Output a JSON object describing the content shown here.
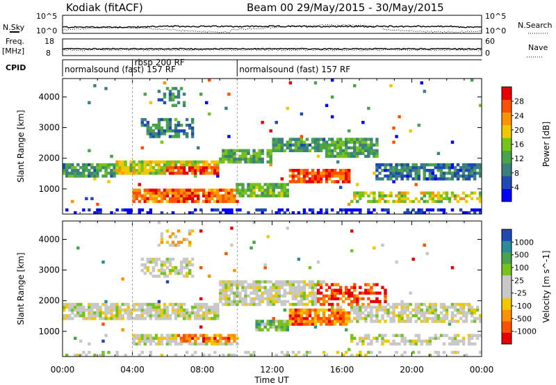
{
  "header": {
    "station": "Kodiak (fitACF)",
    "beam_date": "Beam 00  29/May/2015 - 30/May/2015"
  },
  "top_panels": {
    "nsky_label": "N.Sky",
    "nsky_ticks": [
      "10^5",
      "10^0"
    ],
    "nsearch_label": "N.Search",
    "freq_label_1": "Freq.",
    "freq_label_2": "[MHz]",
    "freq_ticks": [
      "18",
      "8"
    ],
    "nave_label": "Nave",
    "nave_ticks": [
      "60",
      "0"
    ],
    "cpid_label": "CPID",
    "cpid_segments": [
      {
        "label": "normalsound (fast) 157 RF",
        "start": 0,
        "end": 4
      },
      {
        "label": "rbsp 200 RF",
        "start": 4,
        "end": 10
      },
      {
        "label": "normalsound (fast) 157 RF",
        "start": 10,
        "end": 24
      }
    ]
  },
  "x_axis": {
    "label": "Time UT",
    "ticks": [
      "00:00",
      "04:00",
      "08:00",
      "12:00",
      "16:00",
      "20:00",
      "00:00"
    ]
  },
  "chart_data": [
    {
      "type": "heatmap",
      "name": "power",
      "xlabel": "Time UT",
      "ylabel": "Slant Range [km]",
      "xlim": [
        0,
        24
      ],
      "ylim": [
        180,
        4600
      ],
      "yticks": [
        "1000",
        "2000",
        "3000",
        "4000"
      ],
      "colorbar": {
        "label": "Power [dB]",
        "ticks": [
          "28",
          "24",
          "20",
          "16",
          "12",
          "8",
          "4"
        ],
        "colors": [
          "#0000ff",
          "#1f49b3",
          "#3b7f7f",
          "#49a349",
          "#77c21c",
          "#f0c800",
          "#ff9200",
          "#ff5000",
          "#e80000"
        ]
      },
      "bands": [
        {
          "t0": 0,
          "t1": 24,
          "r0": 180,
          "r1": 350,
          "density": 0.35,
          "level": 0.05
        },
        {
          "t0": 0,
          "t1": 3,
          "r0": 1350,
          "r1": 1800,
          "density": 0.85,
          "level": 0.35
        },
        {
          "t0": 3,
          "t1": 9,
          "r0": 1500,
          "r1": 1950,
          "density": 0.9,
          "level": 0.55
        },
        {
          "t0": 6,
          "t1": 9,
          "r0": 1450,
          "r1": 1750,
          "density": 0.9,
          "level": 0.85
        },
        {
          "t0": 9,
          "t1": 12,
          "r0": 1800,
          "r1": 2300,
          "density": 0.85,
          "level": 0.4
        },
        {
          "t0": 12,
          "t1": 15,
          "r0": 2250,
          "r1": 2700,
          "density": 0.85,
          "level": 0.35
        },
        {
          "t0": 15,
          "t1": 18,
          "r0": 2000,
          "r1": 2700,
          "density": 0.8,
          "level": 0.4
        },
        {
          "t0": 18,
          "t1": 24,
          "r0": 1300,
          "r1": 1800,
          "density": 0.75,
          "level": 0.25
        },
        {
          "t0": 4,
          "t1": 10,
          "r0": 550,
          "r1": 1050,
          "density": 0.85,
          "level": 0.8
        },
        {
          "t0": 10,
          "t1": 13,
          "r0": 750,
          "r1": 1150,
          "density": 0.8,
          "level": 0.45
        },
        {
          "t0": 13,
          "t1": 16.5,
          "r0": 1200,
          "r1": 1650,
          "density": 0.85,
          "level": 0.85
        },
        {
          "t0": 16.5,
          "t1": 24,
          "r0": 550,
          "r1": 900,
          "density": 0.6,
          "level": 0.55
        },
        {
          "t0": 4.5,
          "t1": 7.5,
          "r0": 2700,
          "r1": 3300,
          "density": 0.6,
          "level": 0.3
        },
        {
          "t0": 5.5,
          "t1": 7,
          "r0": 3700,
          "r1": 4300,
          "density": 0.35,
          "level": 0.3
        }
      ]
    },
    {
      "type": "heatmap",
      "name": "velocity",
      "xlabel": "Time UT",
      "ylabel": "Slant Range [km]",
      "xlim": [
        0,
        24
      ],
      "ylim": [
        180,
        4600
      ],
      "yticks": [
        "1000",
        "2000",
        "3000",
        "4000"
      ],
      "colorbar": {
        "label": "Velocity [m s^-1]",
        "ticks": [
          "1000",
          "500",
          "100",
          "25",
          "-25",
          "-100",
          "-500",
          "-1000"
        ],
        "colors": [
          "#e80000",
          "#ff5000",
          "#ff9200",
          "#f0c800",
          "#c8c8c8",
          "#c8c8c8",
          "#77c21c",
          "#49a349",
          "#2a8c9a",
          "#1f49b3"
        ]
      },
      "bands": [
        {
          "t0": 0,
          "t1": 24,
          "r0": 180,
          "r1": 350,
          "density": 0.25,
          "level": 0.5
        },
        {
          "t0": 0,
          "t1": 9,
          "r0": 1350,
          "r1": 1950,
          "density": 0.8,
          "level": 0.5
        },
        {
          "t0": 9,
          "t1": 15,
          "r0": 1800,
          "r1": 2700,
          "density": 0.75,
          "level": 0.5
        },
        {
          "t0": 15,
          "t1": 24,
          "r0": 1300,
          "r1": 1900,
          "density": 0.65,
          "level": 0.5
        },
        {
          "t0": 4,
          "t1": 10,
          "r0": 550,
          "r1": 950,
          "density": 0.8,
          "level": 0.5
        },
        {
          "t0": 6.5,
          "t1": 10,
          "r0": 650,
          "r1": 950,
          "density": 0.8,
          "level": 0.2
        },
        {
          "t0": 11,
          "t1": 13,
          "r0": 1050,
          "r1": 1400,
          "density": 0.8,
          "level": 0.7
        },
        {
          "t0": 13,
          "t1": 16.5,
          "r0": 1200,
          "r1": 1700,
          "density": 0.85,
          "level": 0.2
        },
        {
          "t0": 14.5,
          "t1": 18.5,
          "r0": 1800,
          "r1": 2600,
          "density": 0.55,
          "level": 0.15
        },
        {
          "t0": 16.5,
          "t1": 24,
          "r0": 550,
          "r1": 900,
          "density": 0.55,
          "level": 0.5
        },
        {
          "t0": 4.5,
          "t1": 7.5,
          "r0": 2800,
          "r1": 3400,
          "density": 0.5,
          "level": 0.5
        },
        {
          "t0": 5.5,
          "t1": 7.5,
          "r0": 3800,
          "r1": 4350,
          "density": 0.3,
          "level": 0.35
        }
      ]
    }
  ]
}
